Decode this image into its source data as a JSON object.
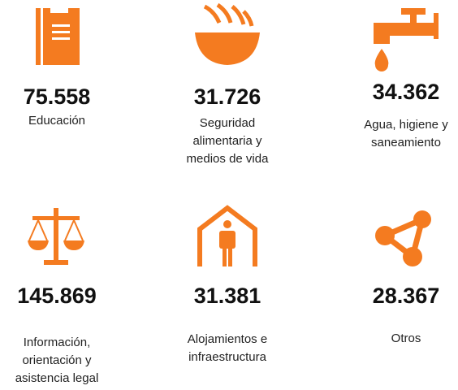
{
  "items": [
    {
      "number": "75.558",
      "label": [
        "Educación"
      ]
    },
    {
      "number": "31.726",
      "label": [
        "Seguridad",
        "alimentaria y",
        "medios de vida"
      ]
    },
    {
      "number": "34.362",
      "label": [
        "Agua, higiene y",
        "saneamiento"
      ]
    },
    {
      "number": "145.869",
      "label": [
        "Información,",
        "orientación y",
        "asistencia legal"
      ]
    },
    {
      "number": "31.381",
      "label": [
        "Alojamientos e",
        "infraestructura"
      ]
    },
    {
      "number": "28.367",
      "label": [
        "Otros"
      ]
    }
  ]
}
